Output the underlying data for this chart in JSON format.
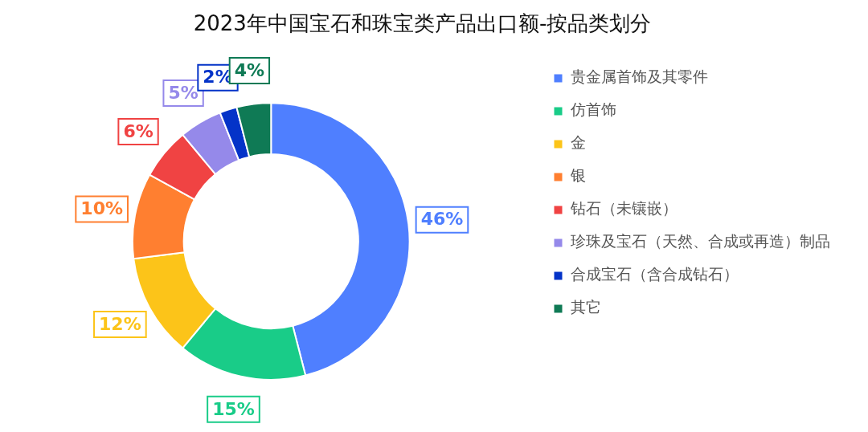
{
  "chart_data": {
    "type": "donut",
    "title": "2023年中国宝石和珠宝类产品出口额-按品类划分",
    "categories": [
      "贵金属首饰及其零件",
      "仿首饰",
      "金",
      "银",
      "钻石（未镶嵌）",
      "珍珠及宝石（天然、合成或再造）制品",
      "合成宝石（含合成钻石）",
      "其它"
    ],
    "values": [
      46,
      15,
      12,
      10,
      6,
      5,
      2,
      4
    ],
    "colors": [
      "#4f7fff",
      "#19cc88",
      "#fcc419",
      "#ff7f30",
      "#f04343",
      "#9589ea",
      "#0433c8",
      "#0f7a55"
    ],
    "value_labels": [
      "46%",
      "15%",
      "12%",
      "10%",
      "6%",
      "5%",
      "2%",
      "4%"
    ],
    "legend": "right"
  }
}
